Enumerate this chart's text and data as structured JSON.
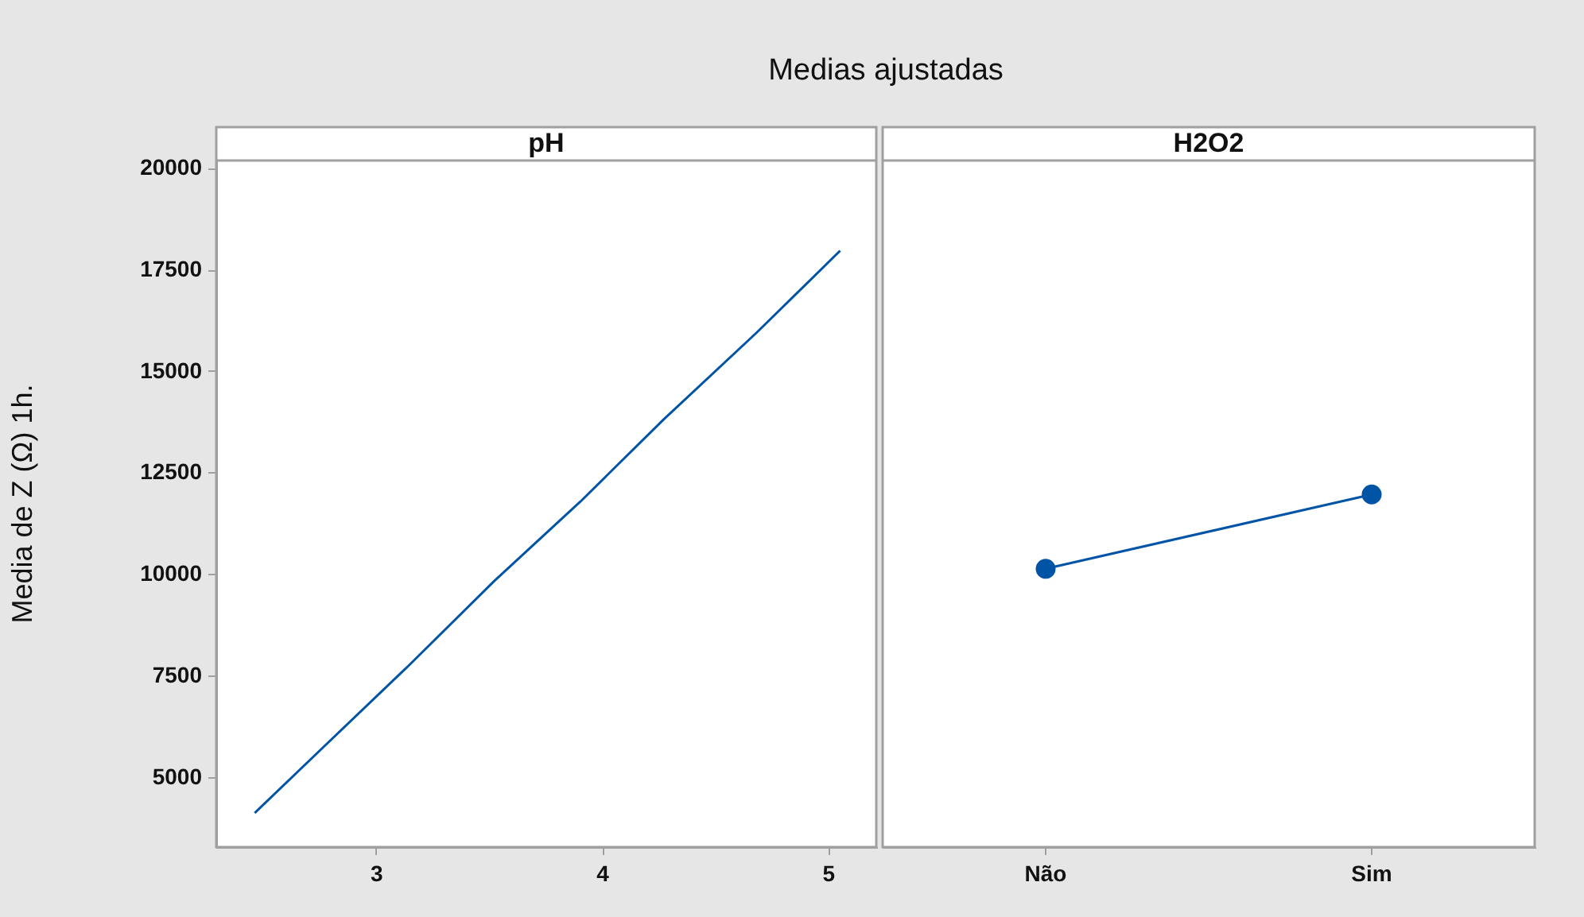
{
  "chart_data": [
    {
      "type": "line",
      "title": "Medias ajustadas",
      "subtitle": "pH",
      "ylabel": "Media de Z (Ω) 1h.",
      "x": [
        2.46,
        2.76,
        3.14,
        3.52,
        3.9,
        4.27,
        4.68,
        5.05
      ],
      "series": [
        {
          "color": "#0054a6",
          "values": [
            4140,
            5740,
            7760,
            9850,
            11800,
            13830,
            15960,
            17980
          ]
        }
      ],
      "xlim": [
        2.29,
        5.21
      ],
      "xticks": [
        3,
        4,
        5
      ],
      "ylim": [
        3300,
        20200
      ],
      "yticks": [
        5000,
        7500,
        10000,
        12500,
        15000,
        17500,
        20000
      ],
      "marker": "none",
      "grid": false,
      "legend": false
    },
    {
      "type": "line",
      "subtitle": "H2O2",
      "categories": [
        "Não",
        "Sim"
      ],
      "series": [
        {
          "color": "#0054a6",
          "values": [
            10150,
            11980
          ]
        }
      ],
      "ylim": [
        3300,
        20200
      ],
      "marker": "circle",
      "grid": false,
      "legend": false,
      "tick_labels": "x"
    }
  ]
}
